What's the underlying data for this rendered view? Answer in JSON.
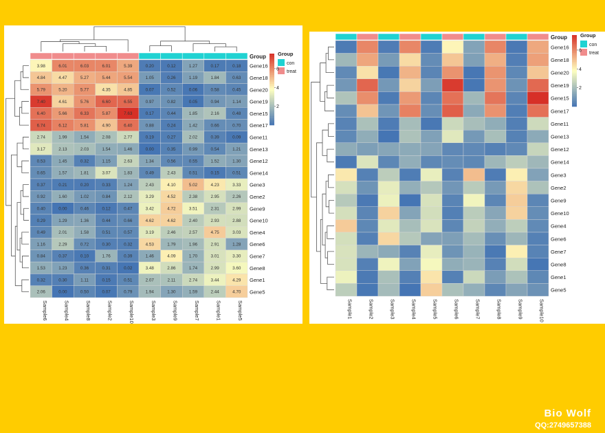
{
  "watermark": {
    "title": "Bio Wolf",
    "subtitle": "QQ:2749657388"
  },
  "chart_data": [
    {
      "type": "heatmap",
      "title": "",
      "clustered": true,
      "cell_numbers": true,
      "rows": [
        "Gene16",
        "Gene18",
        "Gene20",
        "Gene19",
        "Gene15",
        "Gene17",
        "Gene11",
        "Gene13",
        "Gene12",
        "Gene14",
        "Gene3",
        "Gene2",
        "Gene9",
        "Gene10",
        "Gene4",
        "Gene6",
        "Gene7",
        "Gene8",
        "Gene1",
        "Gene5"
      ],
      "columns": [
        "Sample6",
        "Sample4",
        "Sample8",
        "Sample2",
        "Sample10",
        "Sample3",
        "Sample9",
        "Sample7",
        "Sample1",
        "Sample5"
      ],
      "column_groups": [
        "treat",
        "treat",
        "treat",
        "treat",
        "treat",
        "con",
        "con",
        "con",
        "con",
        "con"
      ],
      "values": [
        [
          3.98,
          6.01,
          6.03,
          6.01,
          5.39,
          0.2,
          0.12,
          1.27,
          0.17,
          0.18
        ],
        [
          4.84,
          4.47,
          5.27,
          5.44,
          5.54,
          1.05,
          0.26,
          1.19,
          1.84,
          0.63
        ],
        [
          5.79,
          5.2,
          5.77,
          4.35,
          4.85,
          0.07,
          0.52,
          0.06,
          0.58,
          0.45
        ],
        [
          7.4,
          4.61,
          5.76,
          6.6,
          6.55,
          0.97,
          0.82,
          0.05,
          0.94,
          1.14
        ],
        [
          6.4,
          5.66,
          6.33,
          5.87,
          7.63,
          0.17,
          0.44,
          1.85,
          2.16,
          0.48
        ],
        [
          6.74,
          6.12,
          5.81,
          4.9,
          6.4,
          0.88,
          0.24,
          1.42,
          0.66,
          0.7
        ],
        [
          2.74,
          1.99,
          1.54,
          2.08,
          2.77,
          0.19,
          0.27,
          2.02,
          0.39,
          0.09
        ],
        [
          3.17,
          2.13,
          2.03,
          1.54,
          1.46,
          0.0,
          0.35,
          0.99,
          0.54,
          1.21
        ],
        [
          0.53,
          1.45,
          0.32,
          1.15,
          2.63,
          1.34,
          0.56,
          0.55,
          1.52,
          1.3
        ],
        [
          0.65,
          1.57,
          1.81,
          3.07,
          1.83,
          0.49,
          2.43,
          0.51,
          0.15,
          0.51
        ],
        [
          0.37,
          0.21,
          0.2,
          0.33,
          1.24,
          2.43,
          4.1,
          5.02,
          4.23,
          3.33
        ],
        [
          0.92,
          1.6,
          1.02,
          0.84,
          2.12,
          3.29,
          4.52,
          2.38,
          2.95,
          2.26
        ],
        [
          0.4,
          0.0,
          0.46,
          0.12,
          0.47,
          3.42,
          4.72,
          3.51,
          2.31,
          2.99
        ],
        [
          0.29,
          1.29,
          1.36,
          0.44,
          0.66,
          4.62,
          4.62,
          2.4,
          2.93,
          2.88
        ],
        [
          0.49,
          2.01,
          1.58,
          0.51,
          0.57,
          3.19,
          2.46,
          2.57,
          4.75,
          3.03
        ],
        [
          1.16,
          2.29,
          0.72,
          0.3,
          0.32,
          4.53,
          1.79,
          1.96,
          2.91,
          1.28
        ],
        [
          0.84,
          0.37,
          0.1,
          1.76,
          0.39,
          1.46,
          4.09,
          1.7,
          3.01,
          3.3
        ],
        [
          1.53,
          1.23,
          0.36,
          0.31,
          0.02,
          3.48,
          2.86,
          1.74,
          2.99,
          3.6
        ],
        [
          0.32,
          0.3,
          1.11,
          0.15,
          0.51,
          2.07,
          2.11,
          2.74,
          3.44,
          4.29
        ],
        [
          2.06,
          0.0,
          0.5,
          0.07,
          0.79,
          1.94,
          1.3,
          1.59,
          2.44,
          4.7
        ]
      ],
      "legend_group": {
        "title": "Group",
        "items": [
          {
            "label": "con",
            "color": "#20D2D2"
          },
          {
            "label": "treat",
            "color": "#F08C8C"
          }
        ]
      },
      "colorbar_ticks": [
        2,
        4,
        6
      ],
      "color_scale": [
        "#4575B4",
        "#FFFFBF",
        "#D73027"
      ],
      "value_range": [
        0,
        7.6
      ]
    },
    {
      "type": "heatmap",
      "title": "",
      "clustered": "rows",
      "cell_numbers": false,
      "rows": [
        "Gene16",
        "Gene18",
        "Gene20",
        "Gene19",
        "Gene15",
        "Gene17",
        "Gene11",
        "Gene13",
        "Gene12",
        "Gene14",
        "Gene3",
        "Gene2",
        "Gene9",
        "Gene10",
        "Gene4",
        "Gene6",
        "Gene7",
        "Gene8",
        "Gene1",
        "Gene5"
      ],
      "columns": [
        "Sample1",
        "Sample2",
        "Sample3",
        "Sample4",
        "Sample5",
        "Sample6",
        "Sample7",
        "Sample8",
        "Sample9",
        "Sample10"
      ],
      "column_groups": [
        "con",
        "treat",
        "con",
        "treat",
        "con",
        "treat",
        "con",
        "treat",
        "con",
        "treat"
      ],
      "values": [
        [
          0.17,
          6.01,
          0.2,
          6.01,
          0.18,
          3.98,
          1.27,
          6.03,
          0.12,
          5.39
        ],
        [
          1.84,
          5.44,
          1.05,
          4.47,
          0.63,
          4.84,
          1.19,
          5.27,
          0.26,
          5.54
        ],
        [
          0.58,
          4.35,
          0.07,
          5.2,
          0.45,
          5.79,
          0.06,
          5.77,
          0.52,
          4.85
        ],
        [
          0.94,
          6.6,
          0.97,
          4.61,
          1.14,
          7.4,
          0.05,
          5.76,
          0.82,
          6.55
        ],
        [
          2.16,
          5.87,
          0.17,
          5.66,
          0.48,
          6.4,
          1.85,
          6.33,
          0.44,
          7.63
        ],
        [
          0.66,
          4.9,
          0.88,
          6.12,
          0.7,
          6.74,
          1.42,
          5.81,
          0.24,
          6.4
        ],
        [
          0.39,
          2.08,
          0.19,
          1.99,
          0.09,
          2.74,
          2.02,
          1.54,
          0.27,
          2.77
        ],
        [
          0.54,
          1.54,
          0.0,
          2.13,
          1.21,
          3.17,
          0.99,
          2.03,
          0.35,
          1.46
        ],
        [
          1.52,
          1.15,
          1.34,
          1.45,
          1.3,
          0.53,
          0.55,
          0.32,
          0.56,
          2.63
        ],
        [
          0.15,
          3.07,
          0.49,
          1.57,
          0.51,
          0.65,
          0.51,
          1.81,
          2.43,
          1.83
        ],
        [
          4.23,
          0.33,
          2.43,
          0.21,
          3.33,
          0.37,
          5.02,
          0.2,
          4.1,
          1.24
        ],
        [
          2.95,
          0.84,
          3.29,
          1.6,
          2.26,
          0.92,
          2.38,
          1.02,
          4.52,
          2.12
        ],
        [
          2.31,
          0.12,
          3.42,
          0.0,
          2.99,
          0.4,
          3.51,
          0.46,
          4.72,
          0.47
        ],
        [
          2.93,
          0.44,
          4.62,
          1.29,
          2.88,
          0.29,
          2.4,
          1.36,
          4.62,
          0.66
        ],
        [
          4.75,
          0.51,
          3.19,
          2.01,
          3.03,
          0.49,
          2.57,
          1.58,
          2.46,
          0.57
        ],
        [
          2.91,
          0.3,
          4.53,
          2.29,
          1.28,
          1.16,
          1.96,
          0.72,
          1.79,
          0.32
        ],
        [
          3.01,
          1.76,
          1.46,
          0.37,
          3.3,
          0.84,
          1.7,
          0.1,
          4.09,
          0.39
        ],
        [
          2.99,
          0.31,
          3.48,
          1.23,
          3.6,
          1.53,
          1.74,
          0.36,
          2.86,
          0.02
        ],
        [
          3.44,
          0.15,
          2.07,
          0.3,
          4.29,
          0.32,
          2.74,
          1.11,
          2.11,
          0.51
        ],
        [
          2.44,
          0.07,
          1.94,
          0.0,
          4.7,
          2.06,
          1.59,
          0.5,
          1.3,
          0.79
        ]
      ],
      "legend_group": {
        "title": "Group",
        "items": [
          {
            "label": "con",
            "color": "#20D2D2"
          },
          {
            "label": "treat",
            "color": "#F08C8C"
          }
        ]
      },
      "colorbar_ticks": [
        2,
        4,
        6
      ],
      "color_scale": [
        "#4575B4",
        "#FFFFBF",
        "#D73027"
      ],
      "value_range": [
        0,
        7.6
      ]
    }
  ]
}
